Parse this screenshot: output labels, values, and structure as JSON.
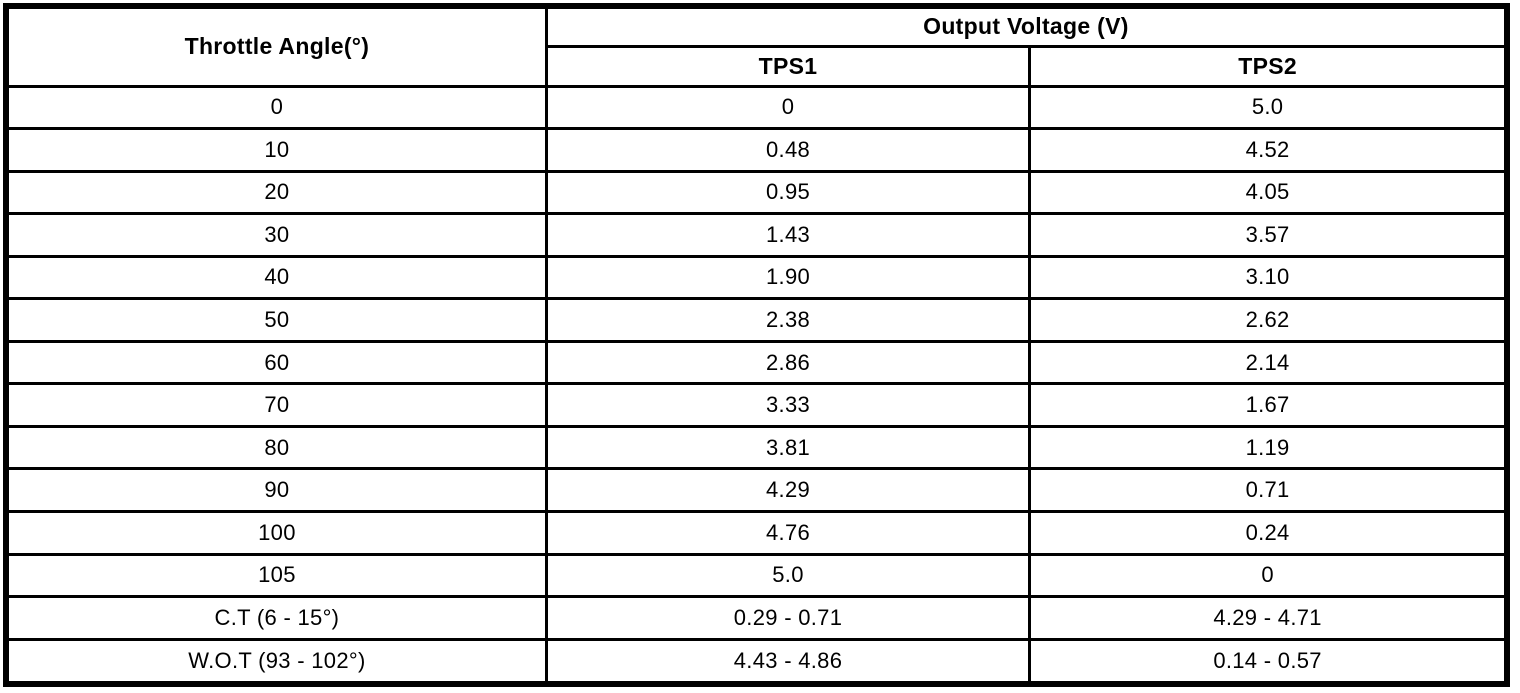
{
  "chart_data": {
    "type": "table",
    "header": {
      "throttle_angle": "Throttle Angle(°)",
      "output_voltage_group": "Output Voltage (V)",
      "tps1": "TPS1",
      "tps2": "TPS2"
    },
    "rows": [
      {
        "angle": "0",
        "tps1": "0",
        "tps2": "5.0"
      },
      {
        "angle": "10",
        "tps1": "0.48",
        "tps2": "4.52"
      },
      {
        "angle": "20",
        "tps1": "0.95",
        "tps2": "4.05"
      },
      {
        "angle": "30",
        "tps1": "1.43",
        "tps2": "3.57"
      },
      {
        "angle": "40",
        "tps1": "1.90",
        "tps2": "3.10"
      },
      {
        "angle": "50",
        "tps1": "2.38",
        "tps2": "2.62"
      },
      {
        "angle": "60",
        "tps1": "2.86",
        "tps2": "2.14"
      },
      {
        "angle": "70",
        "tps1": "3.33",
        "tps2": "1.67"
      },
      {
        "angle": "80",
        "tps1": "3.81",
        "tps2": "1.19"
      },
      {
        "angle": "90",
        "tps1": "4.29",
        "tps2": "0.71"
      },
      {
        "angle": "100",
        "tps1": "4.76",
        "tps2": "0.24"
      },
      {
        "angle": "105",
        "tps1": "5.0",
        "tps2": "0"
      },
      {
        "angle": "C.T (6 - 15°)",
        "tps1": "0.29 - 0.71",
        "tps2": "4.29 - 4.71"
      },
      {
        "angle": "W.O.T (93 - 102°)",
        "tps1": "4.43 - 4.86",
        "tps2": "0.14 - 0.57"
      }
    ],
    "colors": {
      "border": "#000000",
      "background": "#ffffff",
      "text": "#000000"
    }
  }
}
